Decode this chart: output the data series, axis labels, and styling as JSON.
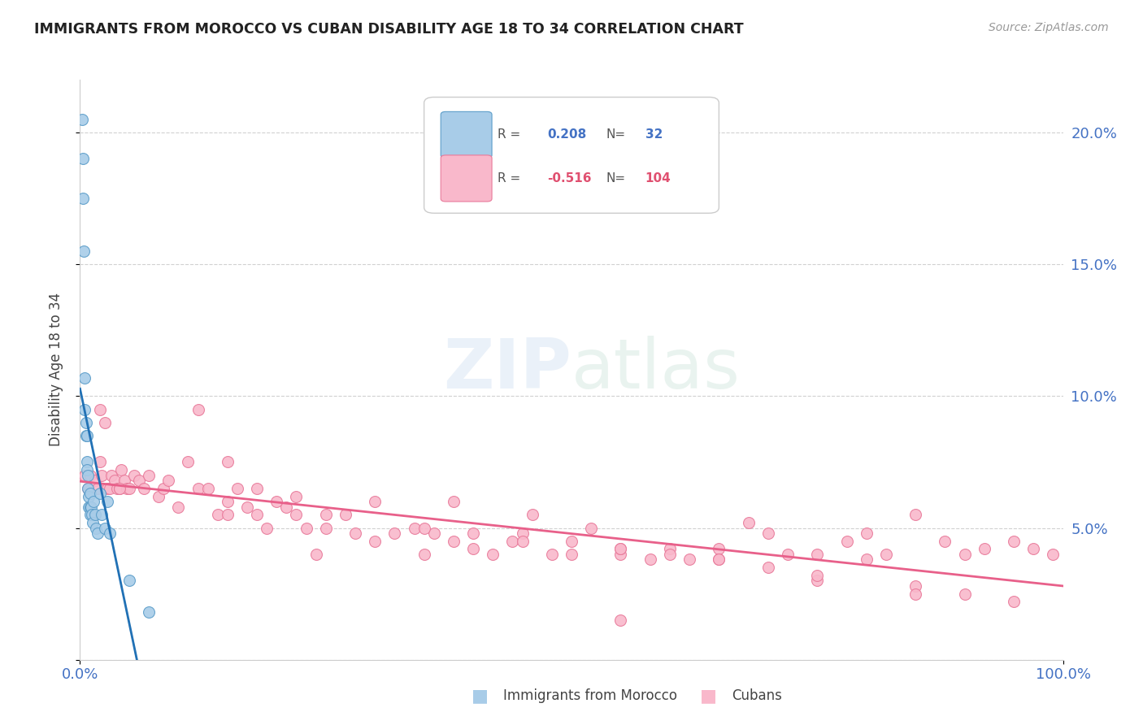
{
  "title": "IMMIGRANTS FROM MOROCCO VS CUBAN DISABILITY AGE 18 TO 34 CORRELATION CHART",
  "source": "Source: ZipAtlas.com",
  "ylabel": "Disability Age 18 to 34",
  "ylim": [
    0.0,
    0.22
  ],
  "xlim": [
    0.0,
    1.0
  ],
  "yticks": [
    0.0,
    0.05,
    0.1,
    0.15,
    0.2
  ],
  "ytick_labels_right": [
    "",
    "5.0%",
    "10.0%",
    "15.0%",
    "20.0%"
  ],
  "R_morocco": 0.208,
  "N_morocco": 32,
  "R_cuban": -0.516,
  "N_cuban": 104,
  "color_morocco_fill": "#a8cce8",
  "color_morocco_edge": "#5b9dc9",
  "color_morocco_line": "#2171b5",
  "color_cuban_fill": "#f9b8cb",
  "color_cuban_edge": "#e87a9a",
  "color_cuban_line": "#e8608a",
  "color_dashed": "#c5ddef",
  "watermark_zip": "ZIP",
  "watermark_atlas": "atlas",
  "morocco_x": [
    0.002,
    0.003,
    0.003,
    0.004,
    0.005,
    0.005,
    0.006,
    0.006,
    0.007,
    0.007,
    0.007,
    0.008,
    0.008,
    0.009,
    0.009,
    0.01,
    0.01,
    0.01,
    0.011,
    0.012,
    0.013,
    0.014,
    0.015,
    0.016,
    0.018,
    0.02,
    0.022,
    0.025,
    0.028,
    0.03,
    0.05,
    0.07
  ],
  "morocco_y": [
    0.205,
    0.19,
    0.175,
    0.155,
    0.107,
    0.095,
    0.09,
    0.085,
    0.085,
    0.075,
    0.072,
    0.07,
    0.065,
    0.062,
    0.058,
    0.063,
    0.058,
    0.055,
    0.058,
    0.055,
    0.052,
    0.06,
    0.055,
    0.05,
    0.048,
    0.063,
    0.055,
    0.05,
    0.06,
    0.048,
    0.03,
    0.018
  ],
  "cuban_x": [
    0.005,
    0.008,
    0.01,
    0.015,
    0.018,
    0.02,
    0.022,
    0.025,
    0.028,
    0.03,
    0.032,
    0.035,
    0.038,
    0.04,
    0.042,
    0.045,
    0.048,
    0.05,
    0.055,
    0.06,
    0.065,
    0.07,
    0.08,
    0.085,
    0.09,
    0.1,
    0.11,
    0.12,
    0.13,
    0.14,
    0.15,
    0.16,
    0.17,
    0.18,
    0.19,
    0.2,
    0.21,
    0.22,
    0.23,
    0.24,
    0.25,
    0.27,
    0.28,
    0.3,
    0.32,
    0.34,
    0.36,
    0.38,
    0.4,
    0.42,
    0.44,
    0.46,
    0.48,
    0.5,
    0.52,
    0.55,
    0.58,
    0.6,
    0.62,
    0.65,
    0.68,
    0.7,
    0.72,
    0.75,
    0.78,
    0.8,
    0.82,
    0.85,
    0.88,
    0.9,
    0.92,
    0.95,
    0.97,
    0.99,
    0.12,
    0.15,
    0.18,
    0.22,
    0.25,
    0.3,
    0.35,
    0.4,
    0.45,
    0.5,
    0.55,
    0.6,
    0.65,
    0.7,
    0.75,
    0.8,
    0.85,
    0.9,
    0.95,
    0.38,
    0.45,
    0.55,
    0.65,
    0.75,
    0.85,
    0.15,
    0.35,
    0.55,
    0.02,
    0.04
  ],
  "cuban_y": [
    0.07,
    0.065,
    0.07,
    0.068,
    0.065,
    0.095,
    0.07,
    0.09,
    0.065,
    0.065,
    0.07,
    0.068,
    0.065,
    0.065,
    0.072,
    0.068,
    0.065,
    0.065,
    0.07,
    0.068,
    0.065,
    0.07,
    0.062,
    0.065,
    0.068,
    0.058,
    0.075,
    0.065,
    0.065,
    0.055,
    0.06,
    0.065,
    0.058,
    0.055,
    0.05,
    0.06,
    0.058,
    0.055,
    0.05,
    0.04,
    0.05,
    0.055,
    0.048,
    0.045,
    0.048,
    0.05,
    0.048,
    0.045,
    0.042,
    0.04,
    0.045,
    0.055,
    0.04,
    0.04,
    0.05,
    0.04,
    0.038,
    0.042,
    0.038,
    0.042,
    0.052,
    0.048,
    0.04,
    0.04,
    0.045,
    0.038,
    0.04,
    0.055,
    0.045,
    0.04,
    0.042,
    0.045,
    0.042,
    0.04,
    0.095,
    0.075,
    0.065,
    0.062,
    0.055,
    0.06,
    0.05,
    0.048,
    0.048,
    0.045,
    0.042,
    0.04,
    0.038,
    0.035,
    0.03,
    0.048,
    0.028,
    0.025,
    0.022,
    0.06,
    0.045,
    0.042,
    0.038,
    0.032,
    0.025,
    0.055,
    0.04,
    0.015,
    0.075,
    0.065
  ]
}
